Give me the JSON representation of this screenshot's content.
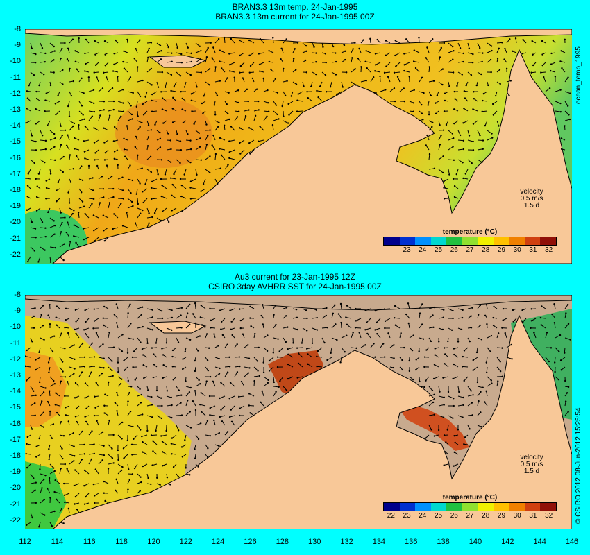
{
  "top": {
    "title1": "BRAN3.3 13m temp. 24-Jan-1995",
    "title2": "BRAN3.3 13m current for 24-Jan-1995 00Z",
    "side_label": "ocean_temp_1995",
    "colorbar_title": "temperature (°C)",
    "colorbar_ticks": [
      "23",
      "24",
      "25",
      "26",
      "27",
      "28",
      "29",
      "30",
      "31",
      "32"
    ],
    "velocity": [
      "velocity",
      "0.5 m/s",
      "1.5 d"
    ]
  },
  "bottom": {
    "title1": "Au3 current for 23-Jan-1995 12Z",
    "title2": "CSIRO 3day AVHRR SST for 24-Jan-1995 00Z",
    "side_label": "© CSIRO 2012  08-Jun-2012 15:25:54",
    "colorbar_title": "temperature (°C)",
    "colorbar_ticks": [
      "22",
      "23",
      "24",
      "25",
      "26",
      "27",
      "28",
      "29",
      "30",
      "31",
      "32"
    ],
    "velocity": [
      "velocity",
      "0.5 m/s",
      "1.5 d"
    ]
  },
  "y_ticks": [
    "-8",
    "-9",
    "-10",
    "-11",
    "-12",
    "-13",
    "-14",
    "-15",
    "-16",
    "-17",
    "-18",
    "-19",
    "-20",
    "-21",
    "-22"
  ],
  "x_ticks": [
    "112",
    "114",
    "116",
    "118",
    "120",
    "122",
    "124",
    "126",
    "128",
    "130",
    "132",
    "134",
    "136",
    "138",
    "140",
    "142",
    "144",
    "146"
  ],
  "colors": {
    "land": "#f8c898",
    "cloud": "#c8aa8e",
    "background": "#00ffff"
  },
  "colorbar_colors": [
    "#00008c",
    "#0030d0",
    "#0090ff",
    "#00d8d0",
    "#20c040",
    "#90e030",
    "#f0f000",
    "#ffc000",
    "#f08000",
    "#d04010",
    "#901008"
  ]
}
